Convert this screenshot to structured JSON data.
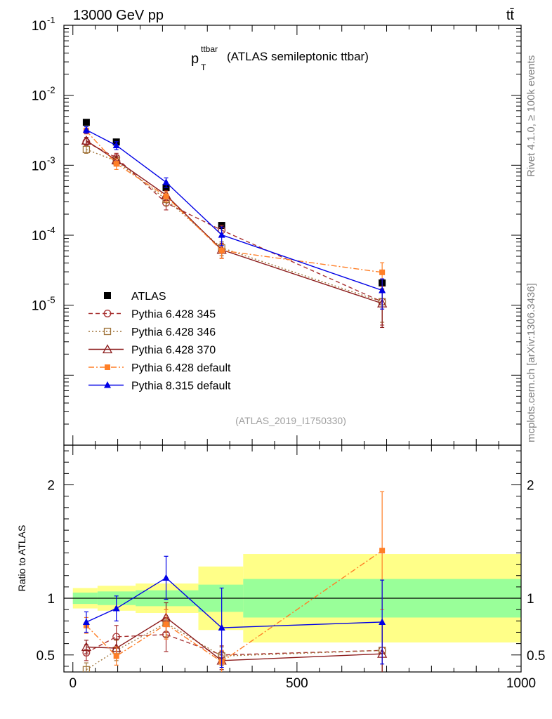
{
  "header": {
    "energy_label": "13000 GeV pp",
    "process_label": "tt̄",
    "title_main": "p",
    "title_sup": "ttbar",
    "title_sub": "T",
    "title_rest": "(ATLAS semileptonic ttbar)",
    "side_rivet": "Rivet 4.1.0, ≥ 100k events",
    "side_source": "mcplots.cern.ch [arXiv:1306.3436]",
    "analysis_id": "(ATLAS_2019_I1750330)",
    "ratio_ylabel": "Ratio to ATLAS"
  },
  "chart_data": [
    {
      "type": "scatter",
      "panel": "main",
      "yscale": "log",
      "xlim": [
        -20,
        1000
      ],
      "ylim": [
        1e-07,
        0.1
      ],
      "y_tick_labels": [
        "10^-5",
        "10^-4",
        "10^-3",
        "10^-2",
        "10^-1"
      ],
      "series": [
        {
          "name": "ATLAS",
          "color": "#000000",
          "marker": "square",
          "line": "none",
          "x": [
            30,
            97,
            208,
            332,
            690
          ],
          "y": [
            0.0041,
            0.00215,
            0.00048,
            0.000138,
            2.08e-05
          ]
        },
        {
          "name": "Pythia 6.428 345",
          "color": "#a83232",
          "marker": "circle-open",
          "line": "dashed",
          "x": [
            30,
            97,
            208,
            332,
            690
          ],
          "y": [
            0.00215,
            0.00128,
            0.00029,
            0.000118,
            1.12e-05
          ],
          "err": [
            0.00025,
            0.0002,
            6e-05,
            2e-05,
            6e-06
          ]
        },
        {
          "name": "Pythia 6.428 346",
          "color": "#a0743a",
          "marker": "square-open",
          "line": "dotted",
          "x": [
            30,
            97,
            208,
            332,
            690
          ],
          "y": [
            0.00168,
            0.00115,
            0.000325,
            6.6e-05,
            1.12e-05
          ],
          "err": [
            0.0002,
            0.00018,
            6e-05,
            1.5e-05,
            5.5e-06
          ]
        },
        {
          "name": "Pythia 6.428 370",
          "color": "#8b1a1a",
          "marker": "triangle-open",
          "line": "solid",
          "x": [
            30,
            97,
            208,
            332,
            690
          ],
          "y": [
            0.00225,
            0.00118,
            0.000375,
            6.2e-05,
            1.06e-05
          ],
          "err": [
            0.00025,
            0.00018,
            6e-05,
            1.5e-05,
            5.8e-06
          ]
        },
        {
          "name": "Pythia 6.428 default",
          "color": "#ff7f27",
          "marker": "square-filled",
          "line": "dashdot",
          "x": [
            30,
            97,
            208,
            332,
            690
          ],
          "y": [
            0.0031,
            0.00105,
            0.00036,
            6.05e-05,
            2.95e-05
          ],
          "err": [
            0.0003,
            0.00018,
            6e-05,
            1.4e-05,
            1.1e-05
          ]
        },
        {
          "name": "Pythia 8.315 default",
          "color": "#0000e6",
          "marker": "triangle-filled",
          "line": "solid",
          "x": [
            30,
            97,
            208,
            332,
            690
          ],
          "y": [
            0.0032,
            0.00192,
            0.00057,
            0.000101,
            1.63e-05
          ],
          "err": [
            0.00035,
            0.00025,
            9e-05,
            3e-05,
            7.5e-06
          ]
        }
      ]
    },
    {
      "type": "scatter",
      "panel": "ratio",
      "ylabel": "Ratio to ATLAS",
      "xlim": [
        -20,
        1000
      ],
      "ylim": [
        0.35,
        2.35
      ],
      "y_tick_labels": [
        "0.5",
        "1",
        "2"
      ],
      "x_tick_labels": [
        "0",
        "500",
        "1000"
      ],
      "reference_line": 1,
      "bands": {
        "bin_edges": [
          0,
          55,
          140,
          280,
          380,
          1000
        ],
        "yellow_lo": [
          0.91,
          0.89,
          0.87,
          0.72,
          0.61
        ],
        "yellow_hi": [
          1.09,
          1.11,
          1.13,
          1.28,
          1.39
        ],
        "green_lo": [
          0.95,
          0.94,
          0.93,
          0.88,
          0.83
        ],
        "green_hi": [
          1.05,
          1.06,
          1.07,
          1.12,
          1.17
        ]
      },
      "series": [
        {
          "name": "Pythia 6.428 345",
          "color": "#a83232",
          "marker": "circle-open",
          "line": "dashed",
          "x": [
            30,
            97,
            208,
            332,
            690
          ],
          "y": [
            0.52,
            0.66,
            0.68,
            0.5,
            0.54
          ],
          "err": [
            0.07,
            0.1,
            0.15,
            0.08,
            0.25
          ]
        },
        {
          "name": "Pythia 6.428 346",
          "color": "#a0743a",
          "marker": "square-open",
          "line": "dotted",
          "x": [
            30,
            97,
            208,
            332,
            690
          ],
          "y": [
            0.37,
            0.54,
            0.78,
            0.49,
            0.54
          ],
          "err": [
            0.06,
            0.09,
            0.12,
            0.08,
            0.25
          ]
        },
        {
          "name": "Pythia 6.428 370",
          "color": "#8b1a1a",
          "marker": "triangle-open",
          "line": "solid",
          "x": [
            30,
            97,
            208,
            332,
            690
          ],
          "y": [
            0.57,
            0.56,
            0.83,
            0.45,
            0.51
          ],
          "err": [
            0.06,
            0.08,
            0.13,
            0.08,
            0.27
          ]
        },
        {
          "name": "Pythia 6.428 default",
          "color": "#ff7f27",
          "marker": "square-filled",
          "line": "dashdot",
          "x": [
            30,
            97,
            208,
            332,
            690
          ],
          "y": [
            0.76,
            0.49,
            0.77,
            0.44,
            1.42
          ],
          "err": [
            0.07,
            0.08,
            0.13,
            0.1,
            0.52
          ]
        },
        {
          "name": "Pythia 8.315 default",
          "color": "#0000e6",
          "marker": "triangle-filled",
          "line": "solid",
          "x": [
            30,
            97,
            208,
            332,
            690
          ],
          "y": [
            0.79,
            0.91,
            1.18,
            0.74,
            0.79
          ],
          "err": [
            0.09,
            0.11,
            0.19,
            0.35,
            0.37
          ]
        }
      ]
    }
  ]
}
